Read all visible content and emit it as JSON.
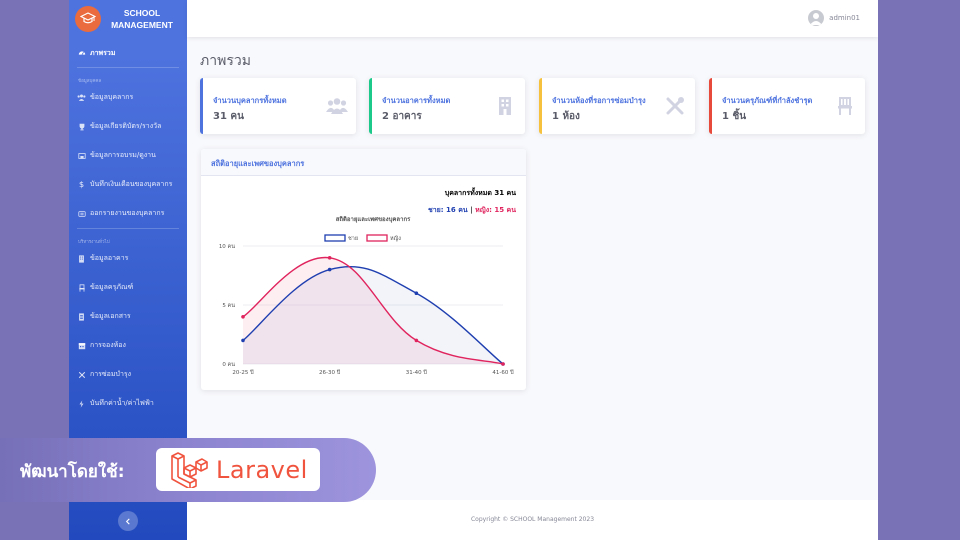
{
  "brand": {
    "line1": "SCHOOL",
    "line2": "MANAGEMENT",
    "logo_icon": "graduation-cap-icon"
  },
  "sidebar": {
    "active": {
      "label": "ภาพรวม",
      "icon": "dashboard-icon"
    },
    "heading1": "ข้อมูลบุคคล",
    "group1": [
      {
        "label": "ข้อมูลบุคลากร",
        "icon": "users-icon"
      },
      {
        "label": "ข้อมูลเกียรติบัตร/รางวัล",
        "icon": "trophy-icon"
      },
      {
        "label": "ข้อมูลการอบรม/ดูงาน",
        "icon": "chalkboard-icon"
      },
      {
        "label": "บันทึกเงินเดือนของบุคลากร",
        "icon": "dollar-icon"
      },
      {
        "label": "ออกรายงานของบุคลากร",
        "icon": "report-icon"
      }
    ],
    "heading2": "บริหารงานทั่วไป",
    "group2": [
      {
        "label": "ข้อมูลอาคาร",
        "icon": "building-icon"
      },
      {
        "label": "ข้อมูลครุภัณฑ์",
        "icon": "chair-icon"
      },
      {
        "label": "ข้อมูลเอกสาร",
        "icon": "document-icon"
      },
      {
        "label": "การจองห้อง",
        "icon": "calendar-icon"
      },
      {
        "label": "การซ่อมบำรุง",
        "icon": "tools-icon"
      },
      {
        "label": "บันทึกค่าน้ำ/ค่าไฟฟ้า",
        "icon": "bolt-icon"
      }
    ]
  },
  "topbar": {
    "username": "admin01"
  },
  "page": {
    "title": "ภาพรวม"
  },
  "cards": [
    {
      "label": "จำนวนบุคลากรทั้งหมด",
      "value": "31 คน",
      "icon": "users-icon",
      "color": "#4e73df"
    },
    {
      "label": "จำนวนอาคารทั้งหมด",
      "value": "2 อาคาร",
      "icon": "building-icon",
      "color": "#1cc88a"
    },
    {
      "label": "จำนวนห้องที่รอการซ่อมบำรุง",
      "value": "1 ห้อง",
      "icon": "tools-icon",
      "color": "#f6c23e"
    },
    {
      "label": "จำนวนครุภัณฑ์ที่กำลังชำรุด",
      "value": "1 ชิ้น",
      "icon": "chair-icon",
      "color": "#e74a3b"
    }
  ],
  "stats_panel": {
    "header": "สถิติอายุและเพศของบุคลากร",
    "total": "บุคลากรทั้งหมด 31 คน",
    "male_text": "ชาย: 16 คน",
    "separator": " | ",
    "female_text": "หญิง: 15 คน"
  },
  "chart_data": {
    "type": "line",
    "title": "สถิติอายุและเพศของบุคลากร",
    "categories": [
      "20-25 ปี",
      "26-30 ปี",
      "31-40 ปี",
      "41-60 ปี"
    ],
    "series": [
      {
        "name": "ชาย",
        "values": [
          2,
          8,
          6,
          0
        ],
        "color": "#1f3fb0"
      },
      {
        "name": "หญิง",
        "values": [
          4,
          9,
          2,
          0
        ],
        "color": "#e0245e"
      }
    ],
    "ylim": [
      0,
      10
    ],
    "yticks": [
      {
        "value": 0,
        "label": "0 คน"
      },
      {
        "value": 5,
        "label": "5 คน"
      },
      {
        "value": 10,
        "label": "10 คน"
      }
    ],
    "legend": "top-center",
    "grid": true
  },
  "footer": {
    "copyright": "Copyright © SCHOOL Management 2023"
  },
  "banner": {
    "text": "พัฒนาโดยใช้:",
    "logo_word": "Laravel",
    "logo_icon": "laravel-logo-icon"
  }
}
